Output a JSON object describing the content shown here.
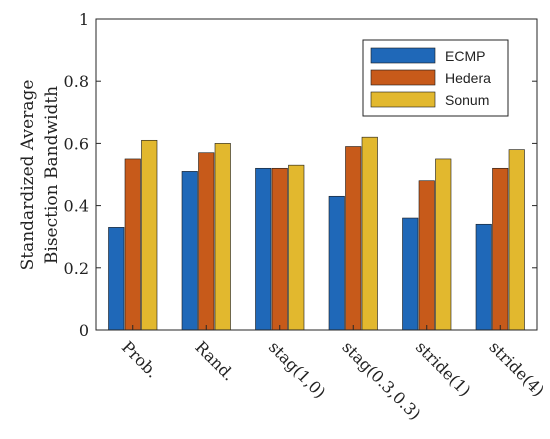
{
  "chart_data": {
    "type": "bar",
    "title": "",
    "xlabel": "",
    "ylabel": [
      "Standardized Average",
      "Bisection Bandwidth"
    ],
    "ylim": [
      0,
      1
    ],
    "yticks": [
      "0",
      "0.2",
      "0.4",
      "0.6",
      "0.8",
      "1"
    ],
    "categories": [
      "Prob.",
      "Rand.",
      "stag(1,0)",
      "stag(0.3,0.3)",
      "stride(1)",
      "stride(4)"
    ],
    "series": [
      {
        "name": "ECMP",
        "color": "#1f68b8",
        "values": [
          0.33,
          0.51,
          0.52,
          0.43,
          0.36,
          0.34
        ]
      },
      {
        "name": "Hedera",
        "color": "#c75a1a",
        "values": [
          0.55,
          0.57,
          0.52,
          0.59,
          0.48,
          0.52
        ]
      },
      {
        "name": "Sonum",
        "color": "#e2b82e",
        "values": [
          0.61,
          0.6,
          0.53,
          0.62,
          0.55,
          0.58
        ]
      }
    ],
    "legend_position": "top-right",
    "grid": false
  }
}
